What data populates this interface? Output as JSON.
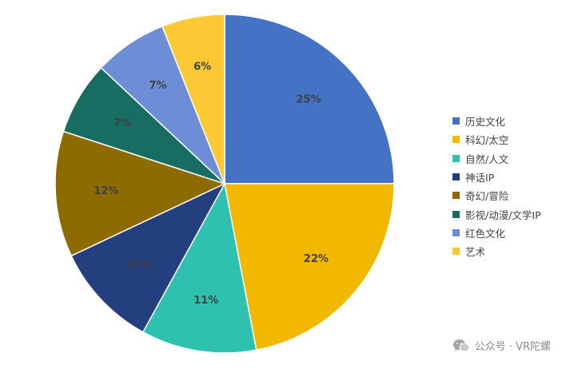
{
  "chart_data": {
    "type": "pie",
    "title": "",
    "slices": [
      {
        "label": "历史文化",
        "value": 25,
        "display": "25%",
        "color": "#4472C4"
      },
      {
        "label": "科幻/太空",
        "value": 22,
        "display": "22%",
        "color": "#F2B800"
      },
      {
        "label": "自然/人文",
        "value": 11,
        "display": "11%",
        "color": "#2EC1B0"
      },
      {
        "label": "神话IP",
        "value": 10,
        "display": "10%",
        "color": "#233F7E"
      },
      {
        "label": "奇幻/冒险",
        "value": 12,
        "display": "12%",
        "color": "#8E6B00"
      },
      {
        "label": "影视/动漫/文学IP",
        "value": 7,
        "display": "7%",
        "color": "#186D62"
      },
      {
        "label": "红色文化",
        "value": 7,
        "display": "7%",
        "color": "#6D8ED6"
      },
      {
        "label": "艺术",
        "value": 6,
        "display": "6%",
        "color": "#FCC934"
      }
    ],
    "legend_placement": "right"
  },
  "watermark": {
    "text": "公众号 · VR陀螺",
    "icon": "wechat-icon"
  }
}
